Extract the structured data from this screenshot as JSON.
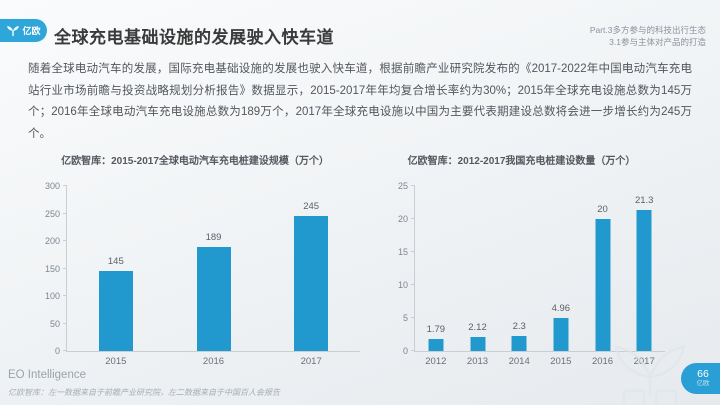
{
  "header": {
    "logo": {
      "text": "亿欧"
    },
    "title": "全球充电基础设施的发展驶入快车道",
    "section_line1": "Part.3多方参与的科技出行生态",
    "section_line2": "3.1参与主体对产品的打造"
  },
  "body": {
    "paragraph": "随着全球电动汽车的发展，国际充电基础设施的发展也驶入快车道，根据前瞻产业研究院发布的《2017-2022年中国电动汽车充电站行业市场前瞻与投资战略规划分析报告》数据显示，2015-2017年年均复合增长率约为30%；2015年全球充电设施总数为145万个；2016年全球电动汽车充电设施总数为189万个，2017年全球充电设施以中国为主要代表期建设总数将会进一步增长约为245万个。"
  },
  "chart_data": [
    {
      "type": "bar",
      "title": "亿欧智库：2015-2017全球电动汽车充电桩建设规模（万个）",
      "categories": [
        "2015",
        "2016",
        "2017"
      ],
      "values": [
        145,
        189,
        245
      ],
      "xlabel": "",
      "ylabel": "",
      "ylim": [
        0,
        300
      ],
      "yticks": [
        0,
        50,
        100,
        150,
        200,
        250,
        300
      ],
      "grid": false,
      "legend": "none",
      "bar_color": "#2199ce"
    },
    {
      "type": "bar",
      "title": "亿欧智库：2012-2017我国充电桩建设数量（万个）",
      "categories": [
        "2012",
        "2013",
        "2014",
        "2015",
        "2016",
        "2017"
      ],
      "values": [
        1.79,
        2.12,
        2.3,
        4.96,
        20,
        21.3
      ],
      "xlabel": "",
      "ylabel": "",
      "ylim": [
        0,
        25
      ],
      "yticks": [
        0,
        5,
        10,
        15,
        20,
        25
      ],
      "grid": false,
      "legend": "none",
      "bar_color": "#2199ce"
    }
  ],
  "footer": {
    "brand": "EO Intelligence",
    "source_note": "亿欧智库：左一数据来自于前瞻产业研究院，左二数据来自于中国百人会报告",
    "page": {
      "number": "66",
      "label": "亿欧"
    }
  },
  "colors": {
    "accent_blue": "#2199ce",
    "logo_blue": "#2fa6da",
    "badge_blue": "#2a9fd6",
    "title_text": "#3a3a3a",
    "body_text": "#53575c",
    "muted_text": "#8d939b",
    "axis_line": "#c9ced3"
  }
}
